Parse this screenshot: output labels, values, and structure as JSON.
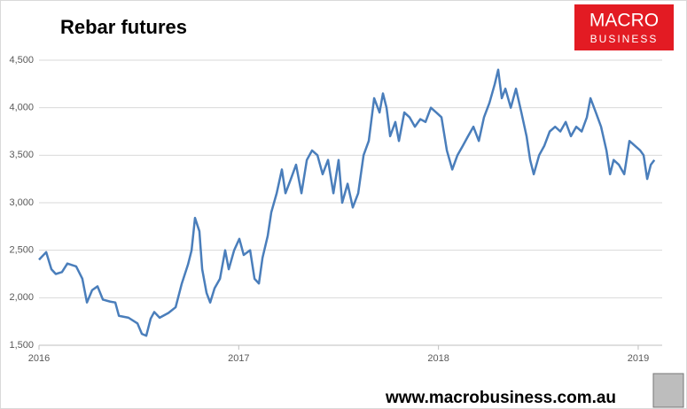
{
  "chart_data": {
    "type": "line",
    "title": "Rebar futures",
    "x": [
      2016,
      2016.036,
      2016.062,
      2016.084,
      2016.115,
      2016.142,
      2016.186,
      2016.217,
      2016.24,
      2016.266,
      2016.293,
      2016.32,
      2016.355,
      2016.382,
      2016.4,
      2016.448,
      2016.493,
      2016.515,
      2016.537,
      2016.559,
      2016.577,
      2016.604,
      2016.648,
      2016.684,
      2016.715,
      2016.746,
      2016.764,
      2016.781,
      2016.803,
      2016.817,
      2016.839,
      2016.857,
      2016.879,
      2016.906,
      2016.932,
      2016.95,
      2016.977,
      2017.003,
      2017.025,
      2017.057,
      2017.079,
      2017.101,
      2017.119,
      2017.145,
      2017.163,
      2017.19,
      2017.216,
      2017.234,
      2017.261,
      2017.287,
      2017.314,
      2017.341,
      2017.367,
      2017.394,
      2017.42,
      2017.447,
      2017.474,
      2017.5,
      2017.518,
      2017.545,
      2017.571,
      2017.598,
      2017.625,
      2017.651,
      2017.678,
      2017.705,
      2017.722,
      2017.74,
      2017.758,
      2017.784,
      2017.802,
      2017.829,
      2017.855,
      2017.882,
      2017.909,
      2017.935,
      2017.962,
      2017.989,
      2018.015,
      2018.042,
      2018.069,
      2018.095,
      2018.122,
      2018.148,
      2018.175,
      2018.202,
      2018.228,
      2018.255,
      2018.282,
      2018.299,
      2018.317,
      2018.335,
      2018.362,
      2018.388,
      2018.415,
      2018.441,
      2018.459,
      2018.477,
      2018.504,
      2018.53,
      2018.557,
      2018.584,
      2018.61,
      2018.637,
      2018.663,
      2018.69,
      2018.717,
      2018.743,
      2018.761,
      2018.788,
      2018.814,
      2018.841,
      2018.859,
      2018.877,
      2018.903,
      2018.93,
      2018.956,
      2018.983,
      2019.01,
      2019.027,
      2019.045,
      2019.063,
      2019.081
    ],
    "series": [
      {
        "color": "#4a7ebb",
        "values": [
          2400,
          2480,
          2300,
          2250,
          2270,
          2360,
          2330,
          2200,
          1950,
          2080,
          2120,
          1980,
          1960,
          1950,
          1810,
          1790,
          1730,
          1620,
          1600,
          1780,
          1850,
          1790,
          1840,
          1900,
          2150,
          2350,
          2500,
          2840,
          2700,
          2300,
          2050,
          1950,
          2100,
          2200,
          2500,
          2300,
          2500,
          2620,
          2450,
          2500,
          2200,
          2150,
          2420,
          2650,
          2900,
          3100,
          3350,
          3100,
          3250,
          3400,
          3100,
          3450,
          3550,
          3500,
          3300,
          3450,
          3100,
          3450,
          3000,
          3200,
          2950,
          3100,
          3500,
          3650,
          4100,
          3950,
          4150,
          4000,
          3700,
          3850,
          3650,
          3950,
          3900,
          3800,
          3880,
          3850,
          4000,
          3950,
          3900,
          3550,
          3350,
          3500,
          3600,
          3700,
          3800,
          3650,
          3900,
          4050,
          4250,
          4400,
          4100,
          4200,
          4000,
          4200,
          3950,
          3700,
          3450,
          3300,
          3500,
          3600,
          3750,
          3800,
          3750,
          3850,
          3700,
          3800,
          3750,
          3900,
          4100,
          3950,
          3800,
          3550,
          3300,
          3450,
          3400,
          3300,
          3650,
          3600,
          3550,
          3500,
          3250,
          3400,
          3450
        ]
      }
    ],
    "xlim": [
      2016,
      2019.12
    ],
    "xticks": [
      2016,
      2017,
      2018,
      2019
    ],
    "ylim": [
      1500,
      4500
    ],
    "yticks": [
      {
        "value": 1500,
        "label": "1,500"
      },
      {
        "value": 2000,
        "label": "2,000"
      },
      {
        "value": 2500,
        "label": "2,500"
      },
      {
        "value": 3000,
        "label": "3,000"
      },
      {
        "value": 3500,
        "label": "3,500"
      },
      {
        "value": 4000,
        "label": "4,000"
      },
      {
        "value": 4500,
        "label": "4,500"
      }
    ],
    "grid": true
  },
  "logo": {
    "line1": "MACRO",
    "line2": "BUSINESS"
  },
  "footer": "www.macrobusiness.com.au"
}
